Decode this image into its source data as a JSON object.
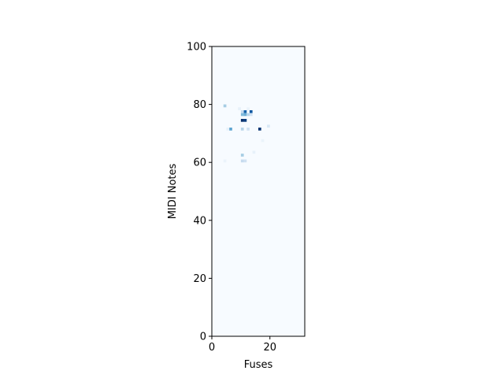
{
  "chart_data": {
    "type": "heatmap",
    "title": "",
    "xlabel": "Fuses",
    "ylabel": "MIDI Notes",
    "xlim": [
      0,
      32
    ],
    "ylim": [
      0,
      100
    ],
    "x_ticks": [
      0,
      20
    ],
    "y_ticks": [
      0,
      20,
      40,
      60,
      80,
      100
    ],
    "colormap": "Blues",
    "background_color": "#f7fbff",
    "value_range": [
      0,
      1
    ],
    "cells": [
      {
        "x": 4,
        "y": 79,
        "value": 0.35
      },
      {
        "x": 6,
        "y": 71,
        "value": 0.55
      },
      {
        "x": 10,
        "y": 77,
        "value": 0.25
      },
      {
        "x": 11,
        "y": 77,
        "value": 0.8
      },
      {
        "x": 13,
        "y": 77,
        "value": 0.85
      },
      {
        "x": 10,
        "y": 76,
        "value": 0.45
      },
      {
        "x": 11,
        "y": 76,
        "value": 0.5
      },
      {
        "x": 12,
        "y": 76,
        "value": 0.3
      },
      {
        "x": 13,
        "y": 76,
        "value": 0.2
      },
      {
        "x": 10,
        "y": 74,
        "value": 1.0
      },
      {
        "x": 11,
        "y": 74,
        "value": 0.95
      },
      {
        "x": 10,
        "y": 71,
        "value": 0.3
      },
      {
        "x": 12,
        "y": 71,
        "value": 0.2
      },
      {
        "x": 16,
        "y": 71,
        "value": 0.98
      },
      {
        "x": 19,
        "y": 72,
        "value": 0.15
      },
      {
        "x": 10,
        "y": 62,
        "value": 0.35
      },
      {
        "x": 10,
        "y": 60,
        "value": 0.25
      },
      {
        "x": 11,
        "y": 60,
        "value": 0.2
      },
      {
        "x": 14,
        "y": 63,
        "value": 0.08
      },
      {
        "x": 9,
        "y": 78,
        "value": 0.08
      },
      {
        "x": 17,
        "y": 67,
        "value": 0.06
      },
      {
        "x": 4,
        "y": 60,
        "value": 0.06
      },
      {
        "x": 12,
        "y": 78,
        "value": 0.06
      },
      {
        "x": 5,
        "y": 71,
        "value": 0.08
      }
    ]
  }
}
